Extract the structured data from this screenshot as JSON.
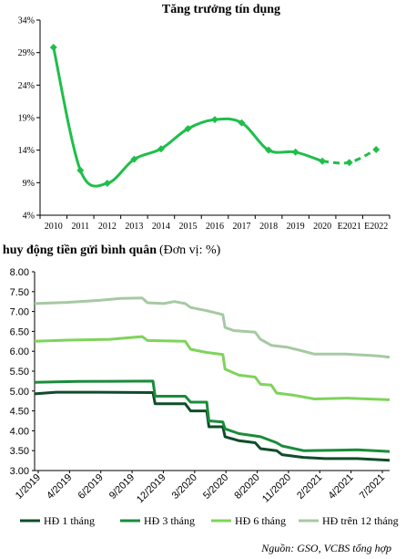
{
  "chart_data": [
    {
      "type": "line",
      "title": "Tăng trưởng tín dụng",
      "categories": [
        "2010",
        "2011",
        "2012",
        "2013",
        "2014",
        "2015",
        "2016",
        "2017",
        "2018",
        "2019",
        "2020",
        "E2021",
        "E2022"
      ],
      "ylim": [
        4,
        34
      ],
      "yticks": [
        "4%",
        "9%",
        "14%",
        "19%",
        "24%",
        "29%",
        "34%"
      ],
      "ytick_values": [
        4,
        9,
        14,
        19,
        24,
        29,
        34
      ],
      "series": [
        {
          "values": [
            29.8,
            10.9,
            8.9,
            12.6,
            14.2,
            17.3,
            18.7,
            18.2,
            14.0,
            13.7,
            12.3,
            12.1,
            14.1
          ],
          "solid_until_index": 10,
          "dashed_from_index": 10,
          "marker": "diamond"
        }
      ],
      "colors": {
        "line": "#1fbe4a"
      },
      "grid": false
    },
    {
      "type": "line",
      "title": "Lãi suất huy động tiền gửi bình quân",
      "title_suffix": "(Đơn vị: %)",
      "xtick_labels": [
        "1/2019",
        "4/2019",
        "6/2019",
        "9/2019",
        "12/2019",
        "3/2020",
        "5/2020",
        "8/2020",
        "11/2020",
        "2/2021",
        "4/2021",
        "7/2021"
      ],
      "x_range_months": [
        0,
        33
      ],
      "ylim": [
        3.0,
        8.0
      ],
      "yticks": [
        "3.00",
        "3.50",
        "4.00",
        "4.50",
        "5.00",
        "5.50",
        "6.00",
        "6.50",
        "7.00",
        "7.50",
        "8.00"
      ],
      "ytick_values": [
        3.0,
        3.5,
        4.0,
        4.5,
        5.0,
        5.5,
        6.0,
        6.5,
        7.0,
        7.5,
        8.0
      ],
      "series": [
        {
          "name": "HĐ 1 tháng",
          "color": "#0f4d2a",
          "points": [
            [
              0,
              4.93
            ],
            [
              2,
              4.97
            ],
            [
              6,
              4.97
            ],
            [
              11,
              4.96
            ],
            [
              11.2,
              4.68
            ],
            [
              14,
              4.68
            ],
            [
              14.5,
              4.5
            ],
            [
              16,
              4.5
            ],
            [
              16.2,
              4.1
            ],
            [
              17.5,
              4.1
            ],
            [
              17.7,
              3.85
            ],
            [
              19,
              3.75
            ],
            [
              20.5,
              3.7
            ],
            [
              21,
              3.55
            ],
            [
              22.5,
              3.5
            ],
            [
              23,
              3.4
            ],
            [
              25,
              3.33
            ],
            [
              27,
              3.3
            ],
            [
              30,
              3.3
            ],
            [
              33,
              3.26
            ]
          ]
        },
        {
          "name": "HĐ 3 tháng",
          "color": "#1a8c3a",
          "points": [
            [
              0,
              5.22
            ],
            [
              4,
              5.24
            ],
            [
              11,
              5.25
            ],
            [
              11.2,
              4.87
            ],
            [
              14,
              4.87
            ],
            [
              14.5,
              4.72
            ],
            [
              16,
              4.72
            ],
            [
              16.2,
              4.25
            ],
            [
              17.5,
              4.22
            ],
            [
              17.7,
              4.05
            ],
            [
              19,
              3.93
            ],
            [
              21,
              3.85
            ],
            [
              22.5,
              3.7
            ],
            [
              23,
              3.62
            ],
            [
              25,
              3.5
            ],
            [
              30,
              3.52
            ],
            [
              33,
              3.48
            ]
          ]
        },
        {
          "name": "HĐ 6 tháng",
          "color": "#7fd35a",
          "points": [
            [
              0,
              6.25
            ],
            [
              3,
              6.28
            ],
            [
              7,
              6.3
            ],
            [
              10,
              6.37
            ],
            [
              10.5,
              6.27
            ],
            [
              14,
              6.25
            ],
            [
              14.5,
              6.05
            ],
            [
              16,
              5.97
            ],
            [
              17.5,
              5.92
            ],
            [
              17.7,
              5.55
            ],
            [
              19,
              5.4
            ],
            [
              20.5,
              5.35
            ],
            [
              21,
              5.17
            ],
            [
              22,
              5.15
            ],
            [
              22.5,
              4.95
            ],
            [
              24,
              4.9
            ],
            [
              25,
              4.85
            ],
            [
              26,
              4.8
            ],
            [
              29,
              4.82
            ],
            [
              33,
              4.78
            ]
          ]
        },
        {
          "name": "HĐ trên 12 tháng",
          "color": "#a6c9a3",
          "points": [
            [
              0,
              7.2
            ],
            [
              3,
              7.23
            ],
            [
              6,
              7.28
            ],
            [
              8,
              7.33
            ],
            [
              10,
              7.34
            ],
            [
              10.5,
              7.22
            ],
            [
              12,
              7.2
            ],
            [
              13,
              7.25
            ],
            [
              14,
              7.2
            ],
            [
              14.5,
              7.1
            ],
            [
              16,
              7.02
            ],
            [
              17.5,
              6.92
            ],
            [
              17.7,
              6.6
            ],
            [
              18.5,
              6.52
            ],
            [
              20.5,
              6.48
            ],
            [
              21,
              6.3
            ],
            [
              22,
              6.15
            ],
            [
              23.5,
              6.1
            ],
            [
              25,
              6.0
            ],
            [
              26,
              5.93
            ],
            [
              29,
              5.93
            ],
            [
              31,
              5.9
            ],
            [
              32,
              5.88
            ],
            [
              33,
              5.85
            ]
          ]
        }
      ],
      "grid": false
    }
  ],
  "source_text": "Nguồn: GSO, VCBS tổng hợp"
}
